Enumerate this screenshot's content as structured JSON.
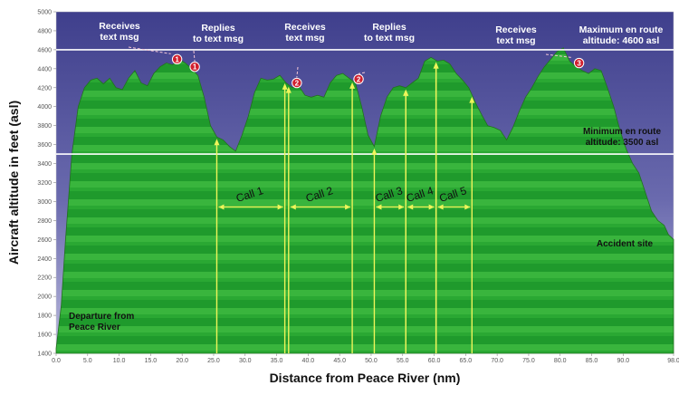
{
  "chart_data": {
    "type": "area",
    "xlabel": "Distance from Peace River (nm)",
    "ylabel": "Aircraft altitude in feet (asl)",
    "xlim": [
      0,
      98
    ],
    "ylim": [
      1400,
      5000
    ],
    "x_ticks": [
      0,
      5,
      10,
      15,
      20,
      25,
      30,
      35,
      40,
      45,
      50,
      55,
      60,
      65,
      70,
      75,
      80,
      85,
      90,
      98
    ],
    "x_tick_labels": [
      "0.0",
      "5.0",
      "10.0",
      "15.0",
      "20.0",
      "25.0",
      "30.0",
      "35.0",
      "40.0",
      "45.0",
      "50.0",
      "55.0",
      "60.0",
      "65.0",
      "70.0",
      "75.0",
      "80.0",
      "85.0",
      "90.0",
      "98.0"
    ],
    "y_ticks": [
      1400,
      1600,
      1800,
      2000,
      2200,
      2400,
      2600,
      2800,
      3000,
      3200,
      3400,
      3600,
      3800,
      4000,
      4200,
      4400,
      4600,
      4800,
      5000
    ],
    "series": [
      {
        "x": [
          0,
          0.8,
          1.5,
          2.5,
          3.5,
          4.5,
          5.5,
          6.5,
          7.5,
          8.5,
          9.5,
          10.5,
          11.5,
          12.5,
          13.5,
          14.5,
          15.5,
          16.5,
          17.5,
          18.5,
          19.5,
          20.5,
          21.5,
          22.5,
          23.5,
          24.5,
          25.5,
          26.5,
          27.5,
          28.5,
          29.5,
          30.5,
          31.5,
          32.5,
          33.5,
          34.5,
          35.5,
          36.5,
          37.5,
          38.5,
          39.5,
          40.5,
          41.5,
          42.5,
          43.5,
          44.5,
          45.5,
          46.5,
          47.5,
          48.5,
          49.5,
          50.5,
          51.5,
          52.5,
          53.5,
          54.5,
          55.5,
          56.5,
          57.5,
          58.5,
          59.5,
          60.5,
          61.5,
          62.5,
          63.5,
          64.5,
          65.5,
          66.5,
          67.5,
          68.5,
          69.5,
          70.5,
          71.5,
          72.5,
          73.5,
          74.5,
          75.5,
          76.5,
          77.5,
          78.5,
          79.5,
          80.5,
          81.5,
          82.5,
          83.5,
          84.5,
          85.5,
          86.5,
          87.5,
          88.5,
          89.5,
          90.5,
          91.5,
          92.5,
          93.5,
          94.5,
          95.5,
          96.5,
          97.2,
          98
        ],
        "values": [
          1450,
          1900,
          2600,
          3500,
          4000,
          4200,
          4280,
          4300,
          4240,
          4300,
          4200,
          4180,
          4300,
          4380,
          4250,
          4220,
          4350,
          4420,
          4460,
          4440,
          4500,
          4460,
          4400,
          4330,
          4100,
          3800,
          3680,
          3650,
          3580,
          3530,
          3700,
          3900,
          4150,
          4300,
          4280,
          4290,
          4330,
          4250,
          4200,
          4220,
          4120,
          4100,
          4120,
          4100,
          4250,
          4330,
          4350,
          4300,
          4250,
          4000,
          3700,
          3580,
          3900,
          4100,
          4200,
          4220,
          4200,
          4250,
          4300,
          4480,
          4520,
          4480,
          4490,
          4450,
          4350,
          4280,
          4200,
          4050,
          3920,
          3800,
          3780,
          3750,
          3650,
          3780,
          3950,
          4100,
          4200,
          4320,
          4420,
          4500,
          4580,
          4620,
          4480,
          4420,
          4380,
          4350,
          4400,
          4380,
          4200,
          4000,
          3750,
          3550,
          3400,
          3300,
          3100,
          2900,
          2800,
          2750,
          2650,
          2600
        ]
      }
    ],
    "reference_lines": [
      {
        "y": 4600,
        "label": "Maximum en route altitude: 4600 asl"
      },
      {
        "y": 3500,
        "label": "Minimum en route altitude: 3500 asl"
      }
    ],
    "calls": [
      {
        "label": "Call 1",
        "start": 25.5,
        "end": 36.3
      },
      {
        "label": "Call 2",
        "start": 36.9,
        "end": 47.0
      },
      {
        "label": "Call 3",
        "start": 50.5,
        "end": 55.5
      },
      {
        "label": "Call 4",
        "start": 55.5,
        "end": 60.3
      },
      {
        "label": "Call 5",
        "start": 60.3,
        "end": 66.0
      }
    ],
    "markers": [
      {
        "id": "1",
        "x": 19.2,
        "y": 4500,
        "label": "Receives text msg"
      },
      {
        "id": "1",
        "x": 22.0,
        "y": 4420,
        "label": "Replies to text msg"
      },
      {
        "id": "2",
        "x": 38.2,
        "y": 4250,
        "label": "Receives text msg"
      },
      {
        "id": "2",
        "x": 48.0,
        "y": 4290,
        "label": "Replies to text msg"
      },
      {
        "id": "3",
        "x": 83.0,
        "y": 4460,
        "label": "Receives text msg"
      }
    ],
    "annotations": {
      "departure": "Departure from Peace River",
      "accident": "Accident site"
    }
  }
}
